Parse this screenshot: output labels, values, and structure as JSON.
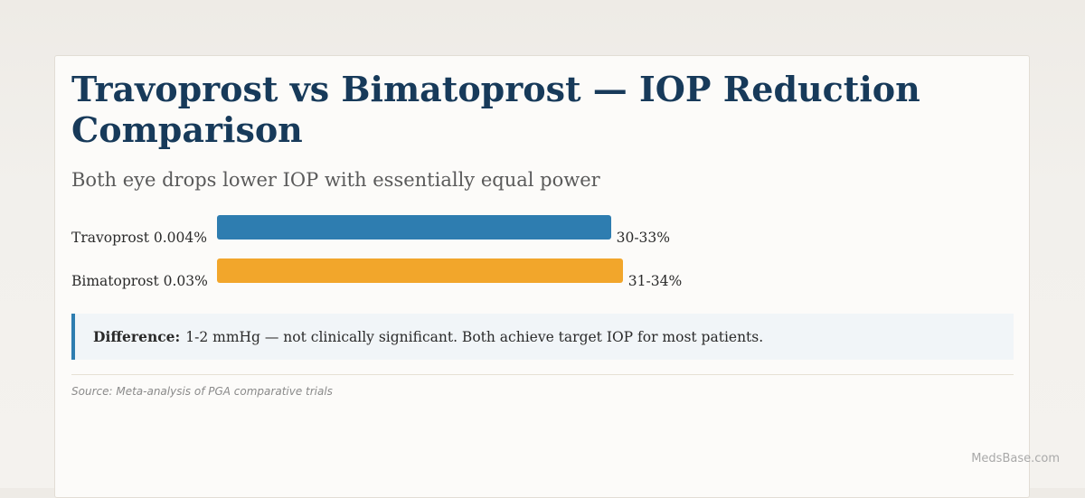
{
  "chart_data": {
    "type": "bar",
    "orientation": "horizontal",
    "title": "Travoprost vs Bimatoprost — IOP Reduction Comparison",
    "subtitle": "Both eye drops lower IOP with essentially equal power",
    "categories": [
      "Travoprost 0.004%",
      "Bimatoprost 0.03%"
    ],
    "value_labels": [
      "30-33%",
      "31-34%"
    ],
    "ranges": [
      [
        30,
        33
      ],
      [
        31,
        34
      ]
    ],
    "values": [
      33,
      34
    ],
    "colors": [
      "#2e7db0",
      "#f2a62b"
    ],
    "xlim": [
      0,
      50
    ],
    "grid": false,
    "legend": "none"
  },
  "callout": {
    "strong": "Difference:",
    "text": "1-2 mmHg — not clinically significant. Both achieve target IOP for most patients."
  },
  "source": "Source: Meta-analysis of PGA comparative trials",
  "watermark": "MedsBase.com"
}
